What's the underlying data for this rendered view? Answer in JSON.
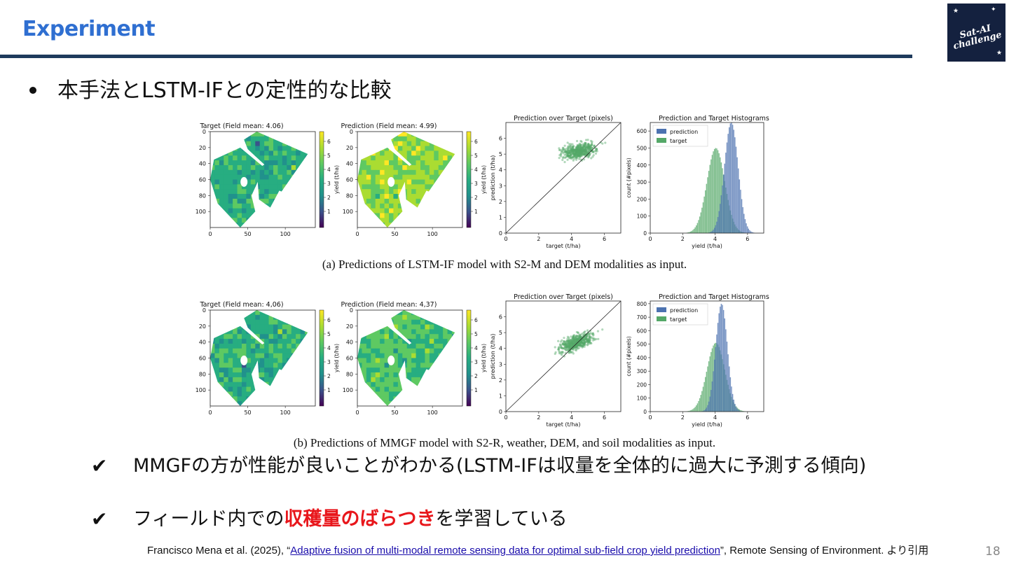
{
  "slide": {
    "title": "Experiment",
    "logo_text_1": "Sat-AI",
    "logo_text_2": "challenge",
    "bullet": "本手法とLSTM-IFとの定性的な比較",
    "page_number": "18"
  },
  "figures": [
    {
      "caption": "(a) Predictions of LSTM-IF model with S2-M and DEM modalities as input.",
      "panel_titles": [
        "Target (Field mean: 4.06)",
        "Prediction (Field mean: 4.99)",
        "Prediction over Target (pixels)",
        "Prediction and Target Histograms"
      ]
    },
    {
      "caption": "(b) Predictions of MMGF model with S2-R, weather, DEM, and soil modalities as input.",
      "panel_titles": [
        "Target (Field mean: 4,06)",
        "Prediction (Field mean: 4,37)",
        "Prediction over Target (pixels)",
        "Prediction and Target Histograms"
      ]
    }
  ],
  "axis_labels": {
    "colorbar": "yield (t/ha)",
    "scatter_x": "target (t/ha)",
    "scatter_y": "prediction (t/ha)",
    "hist_x": "yield (t/ha)",
    "hist_y": "count (#pixels)"
  },
  "legend": {
    "prediction": "prediction",
    "target": "target"
  },
  "ticks": {
    "map_y": [
      "0",
      "20",
      "40",
      "60",
      "80",
      "100"
    ],
    "map_x": [
      "0",
      "50",
      "100"
    ],
    "colorbar": [
      "6",
      "5",
      "4",
      "3",
      "2",
      "1"
    ],
    "scatter": [
      "0",
      "1",
      "2",
      "3",
      "4",
      "5",
      "6"
    ],
    "scatter_x": [
      "0",
      "2",
      "4",
      "6"
    ],
    "hist_x": [
      "0",
      "2",
      "4",
      "6"
    ],
    "hist_y_a": [
      "0",
      "100",
      "200",
      "300",
      "400",
      "500",
      "600"
    ],
    "hist_y_b": [
      "0",
      "100",
      "200",
      "300",
      "400",
      "500",
      "600",
      "700",
      "800"
    ]
  },
  "chart_data": [
    {
      "type": "bar",
      "title": "Prediction and Target Histograms",
      "xlabel": "yield (t/ha)",
      "ylabel": "count (#pixels)",
      "xlim": [
        0,
        7
      ],
      "ylim": [
        0,
        650
      ],
      "series": [
        {
          "name": "prediction",
          "center": 5.0,
          "spread": 0.42,
          "peak": 650
        },
        {
          "name": "target",
          "center": 4.05,
          "spread": 0.55,
          "peak": 500
        }
      ]
    },
    {
      "type": "bar",
      "title": "Prediction and Target Histograms",
      "xlabel": "yield (t/ha)",
      "ylabel": "count (#pixels)",
      "xlim": [
        0,
        7
      ],
      "ylim": [
        0,
        820
      ],
      "series": [
        {
          "name": "prediction",
          "center": 4.4,
          "spread": 0.36,
          "peak": 800
        },
        {
          "name": "target",
          "center": 4.05,
          "spread": 0.55,
          "peak": 510
        }
      ]
    },
    {
      "type": "scatter",
      "title": "Prediction over Target (pixels)",
      "xlabel": "target (t/ha)",
      "ylabel": "prediction (t/ha)",
      "xlim": [
        0,
        7
      ],
      "ylim": [
        0,
        7
      ],
      "cluster": {
        "x_center": 4.5,
        "y_center": 5.2,
        "slope": 0.15
      }
    },
    {
      "type": "scatter",
      "title": "Prediction over Target (pixels)",
      "xlabel": "target (t/ha)",
      "ylabel": "prediction (t/ha)",
      "xlim": [
        0,
        7
      ],
      "ylim": [
        0,
        7
      ],
      "cluster": {
        "x_center": 4.3,
        "y_center": 4.4,
        "slope": 0.35
      }
    }
  ],
  "checks": [
    {
      "text": "MMGFの方が性能が良いことがわかる(LSTM-IFは収量を全体的に過大に予測する傾向)"
    },
    {
      "before": "フィールド内での",
      "highlight": "収穫量のばらつき",
      "after": "を学習している"
    }
  ],
  "citation": {
    "authors": "Francisco Mena et al. (2025), “",
    "link_text": "Adaptive fusion of multi-modal remote sensing data for optimal sub-field crop yield prediction",
    "suffix": "”, Remote Sensing of Environment. より引用"
  },
  "colors": {
    "title": "#2f6fd1",
    "rule": "#1e3a5c",
    "highlight": "#e8161b",
    "prediction": "#4c72b0",
    "target": "#55a868"
  }
}
